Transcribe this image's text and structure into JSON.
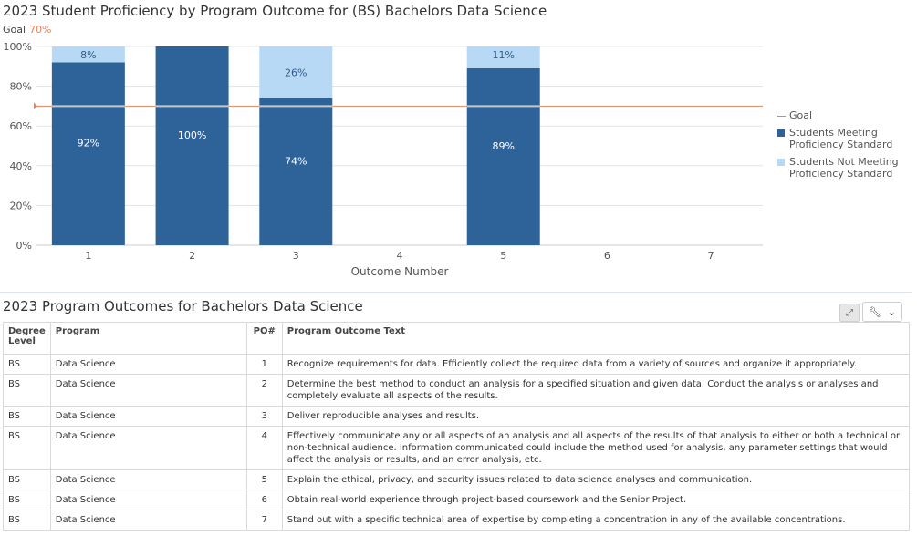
{
  "chart_data": {
    "type": "bar",
    "stacked": true,
    "title": "2023 Student Proficiency by Program Outcome for (BS) Bachelors Data Science",
    "goal_label": "Goal",
    "goal_value_label": "70%",
    "goal": 70,
    "xlabel": "Outcome Number",
    "ylabel": "",
    "ylim": [
      0,
      100
    ],
    "yticks": [
      "0%",
      "20%",
      "40%",
      "60%",
      "80%",
      "100%"
    ],
    "categories": [
      "1",
      "2",
      "3",
      "4",
      "5",
      "6",
      "7"
    ],
    "series": [
      {
        "name": "Students Meeting Proficiency Standard",
        "color": "#2e6399",
        "values": [
          92,
          100,
          74,
          null,
          89,
          null,
          null
        ],
        "labels": [
          "92%",
          "100%",
          "74%",
          "",
          "89%",
          "",
          ""
        ]
      },
      {
        "name": "Students Not Meeting Proficiency Standard",
        "color": "#b8d9f5",
        "values": [
          8,
          0,
          26,
          null,
          11,
          null,
          null
        ],
        "labels": [
          "8%",
          "",
          "26%",
          "",
          "11%",
          "",
          ""
        ]
      }
    ],
    "legend": {
      "position": "right",
      "items": [
        {
          "label": "Goal",
          "color": "#e8825a",
          "kind": "line"
        },
        {
          "label": "Students Meeting Proficiency Standard",
          "color": "#2e6399",
          "kind": "box"
        },
        {
          "label": "Students Not Meeting Proficiency Standard",
          "color": "#b8d9f5",
          "kind": "box"
        }
      ]
    },
    "grid": true
  },
  "table": {
    "title": "2023 Program Outcomes for Bachelors Data Science",
    "headers": {
      "degree": "Degree Level",
      "program": "Program",
      "po": "PO#",
      "text": "Program Outcome Text"
    },
    "rows": [
      {
        "degree": "BS",
        "program": "Data Science",
        "po": "1",
        "text": "Recognize requirements for data.  Efficiently collect the required data from a variety of sources and organize it appropriately."
      },
      {
        "degree": "BS",
        "program": "Data Science",
        "po": "2",
        "text": "Determine the best method to conduct an analysis for a specified situation and given data.  Conduct the analysis or analyses and completely evaluate all aspects of the results."
      },
      {
        "degree": "BS",
        "program": "Data Science",
        "po": "3",
        "text": "Deliver reproducible analyses and results."
      },
      {
        "degree": "BS",
        "program": "Data Science",
        "po": "4",
        "text": "Effectively communicate any or all aspects of an analysis and all aspects of the results of that analysis to either or both a technical or non-technical audience. Information communicated could include the method used for analysis, any parameter settings that would affect the analysis or results, and an error analysis, etc."
      },
      {
        "degree": "BS",
        "program": "Data Science",
        "po": "5",
        "text": "Explain the ethical, privacy, and security issues related to data science analyses and communication."
      },
      {
        "degree": "BS",
        "program": "Data Science",
        "po": "6",
        "text": "Obtain real-world experience through project-based coursework and the Senior Project."
      },
      {
        "degree": "BS",
        "program": "Data Science",
        "po": "7",
        "text": "Stand out with a specific technical area of expertise by completing a concentration in any of the available concentrations."
      }
    ]
  },
  "icons": {
    "expand": "expand-icon",
    "wrench": "wrench-icon",
    "chevron": "chevron-down-icon"
  }
}
